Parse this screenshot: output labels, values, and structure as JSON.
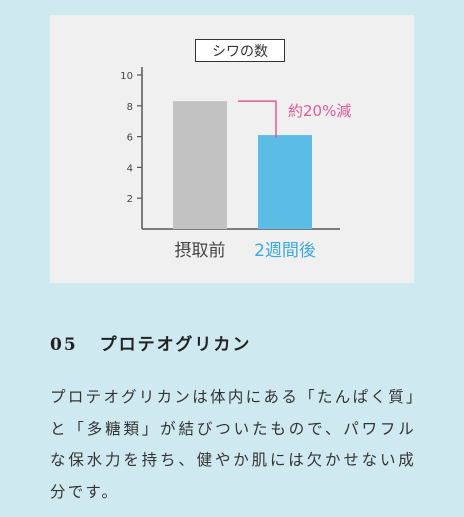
{
  "chart_data": {
    "type": "bar",
    "title": "シワの数",
    "categories": [
      "摂取前",
      "2週間後"
    ],
    "values": [
      8.3,
      6.1
    ],
    "colors": [
      "#c2c2c2",
      "#5bbde6"
    ],
    "category_colors": [
      "#444444",
      "#3aaae0"
    ],
    "yticks": [
      2,
      4,
      6,
      8,
      10
    ],
    "ylim": [
      0,
      10
    ],
    "annotation": "約20%減",
    "annotation_color": "#e05a9a"
  },
  "section": {
    "number": "05",
    "title": "プロテオグリカン",
    "body": "プロテオグリカンは体内にある「たんぱく質」と「多糖類」が結びついたもので、パワフルな保水力を持ち、健やか肌には欠かせない成分です。"
  }
}
